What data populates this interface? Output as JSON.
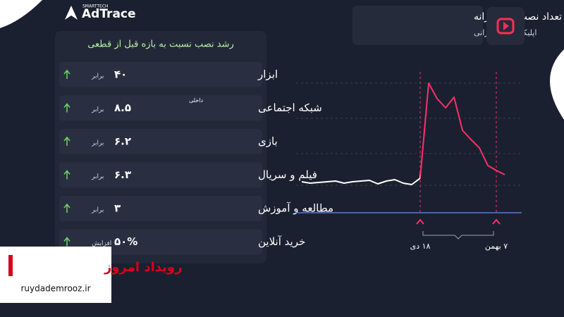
{
  "brand": {
    "tag": "SMARTTECH",
    "name": "AdTrace"
  },
  "header": {
    "title": "تعداد نصب‌های روزانه",
    "subtitle": "اپلیکیشن‌های ایرانی"
  },
  "table": {
    "title": "رشد نصب نسبت به بازه قبل از قطعی",
    "rows": [
      {
        "category": "ابزار",
        "value": "۴۰",
        "unit": "برابر"
      },
      {
        "category": "شبکه اجتماعی",
        "note": "داخلی",
        "value": "۸.۵",
        "unit": "برابر"
      },
      {
        "category": "بازی",
        "value": "۶.۲",
        "unit": "برابر"
      },
      {
        "category": "فیلم و سریال",
        "value": "۶.۳",
        "unit": "برابر"
      },
      {
        "category": "مطالعه و آموزش",
        "value": "۳",
        "unit": "برابر"
      },
      {
        "category": "خرید آنلاین",
        "value": "۵۰%",
        "unit": "افزایش"
      }
    ]
  },
  "chart_data": {
    "type": "line",
    "x": [
      null,
      null,
      null,
      null,
      null,
      null,
      null,
      null,
      null,
      null,
      null,
      null,
      null,
      null,
      "۱۸ دی",
      null,
      null,
      null,
      null,
      null,
      null,
      null,
      null,
      "۷ بهمن",
      null
    ],
    "values": [
      22,
      21,
      21.5,
      22,
      22.5,
      21,
      22,
      22.5,
      23,
      20.5,
      22.5,
      23.5,
      21,
      20,
      24.5,
      92,
      81,
      74.5,
      82,
      58.5,
      52,
      46,
      33.5,
      30,
      27
    ],
    "ylim": [
      0,
      100
    ],
    "colors": [
      "#ffffff",
      "#ff2d6a"
    ]
  },
  "watermark": {
    "name": "رویداد امروز",
    "url": "ruydademrooz.ir"
  }
}
